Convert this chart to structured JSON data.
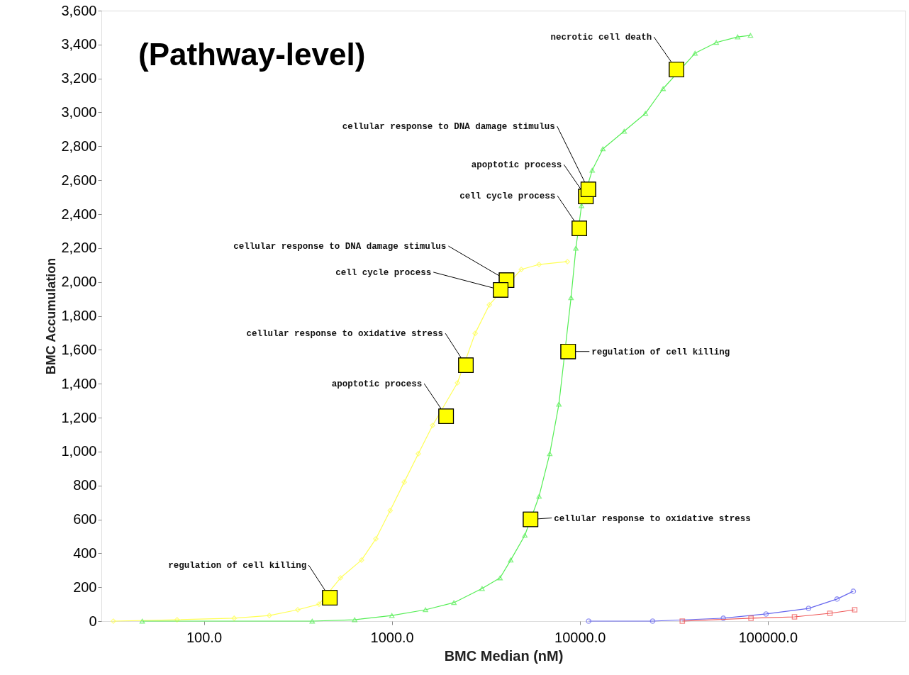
{
  "chart_data": {
    "type": "line",
    "title": "(Pathway-level)",
    "xlabel": "BMC Median (nM)",
    "ylabel": "BMC Accumulation",
    "log": "x",
    "grid": false,
    "line_style": "solid",
    "xlim": [
      28.5,
      540000
    ],
    "ylim": [
      0,
      3600
    ],
    "xticks": [
      {
        "value": 100,
        "label": "100.0"
      },
      {
        "value": 1000,
        "label": "1000.0"
      },
      {
        "value": 10000,
        "label": "10000.0"
      },
      {
        "value": 100000,
        "label": "100000.0"
      }
    ],
    "yticks": [
      0,
      200,
      400,
      600,
      800,
      {
        "value": 1000,
        "label": "1,000"
      },
      {
        "value": 1200,
        "label": "1,200"
      },
      {
        "value": 1400,
        "label": "1,400"
      },
      {
        "value": 1600,
        "label": "1,600"
      },
      {
        "value": 1800,
        "label": "1,800"
      },
      {
        "value": 2000,
        "label": "2,000"
      },
      {
        "value": 2200,
        "label": "2,200"
      },
      {
        "value": 2400,
        "label": "2,400"
      },
      {
        "value": 2600,
        "label": "2,600"
      },
      {
        "value": 2800,
        "label": "2,800"
      },
      {
        "value": 3000,
        "label": "3,000"
      },
      {
        "value": 3200,
        "label": "3,200"
      },
      {
        "value": 3400,
        "label": "3,400"
      },
      {
        "value": 3600,
        "label": "3,600"
      }
    ],
    "series": [
      {
        "marker": "diamond",
        "color": "#ffff55",
        "x": [
          33,
          72,
          145,
          223,
          316,
          410,
          533,
          690,
          822,
          980,
          1164,
          1383,
          1648,
          2233,
          2775,
          3302,
          4883,
          6070,
          8590
        ],
        "values": [
          0,
          8,
          17,
          33,
          67,
          100,
          255,
          360,
          485,
          652,
          820,
          987,
          1154,
          1405,
          1697,
          1865,
          2074,
          2103,
          2120
        ]
      },
      {
        "marker": "triangle",
        "color": "#55ee55",
        "x": [
          47,
          377,
          634,
          1000,
          1510,
          2140,
          3020,
          3765,
          4290,
          5100,
          6070,
          6920,
          7740,
          8980,
          9530,
          10210,
          11640,
          13270,
          17220,
          22340,
          27750,
          41020,
          53220,
          69100,
          80900
        ],
        "values": [
          0,
          0,
          8,
          33,
          67,
          109,
          192,
          255,
          360,
          506,
          736,
          987,
          1279,
          1907,
          2199,
          2450,
          2659,
          2785,
          2889,
          2994,
          3140,
          3349,
          3412,
          3445,
          3454
        ]
      },
      {
        "marker": "circle",
        "color": "#6666ee",
        "x": [
          11140,
          24400,
          58000,
          97900,
          164800,
          233500,
          285000
        ],
        "values": [
          0,
          0,
          17,
          42,
          75,
          130,
          176
        ]
      },
      {
        "marker": "square",
        "color": "#ee5555",
        "x": [
          35100,
          81400,
          138700,
          214000,
          290000
        ],
        "values": [
          0,
          17,
          25,
          46,
          67
        ]
      },
      {
        "type": "scatter",
        "marker": "square",
        "color": "#ffff00",
        "x": [
          468,
          1945,
          2478,
          4075,
          3795,
          5470,
          8670,
          9950,
          10770,
          11100,
          32700
        ],
        "values": [
          138,
          1208,
          1509,
          2011,
          1953,
          600,
          1590,
          2316,
          2504,
          2546,
          3253
        ]
      }
    ],
    "annotations": [
      {
        "text": "regulation of cell killing",
        "x": 468,
        "y": 138
      },
      {
        "text": "apoptotic process",
        "x": 1945,
        "y": 1208
      },
      {
        "text": "cellular response to oxidative stress",
        "x": 2478,
        "y": 1509
      },
      {
        "text": "cellular response to DNA damage stimulus",
        "x": 4075,
        "y": 2011
      },
      {
        "text": "cell cycle process",
        "x": 3795,
        "y": 1953
      },
      {
        "text": "cellular response to oxidative stress",
        "x": 5470,
        "y": 600
      },
      {
        "text": "regulation of cell killing",
        "x": 8670,
        "y": 1590
      },
      {
        "text": "cell cycle process",
        "x": 9950,
        "y": 2316
      },
      {
        "text": "apoptotic process",
        "x": 10770,
        "y": 2504
      },
      {
        "text": "cellular response to DNA damage stimulus",
        "x": 11100,
        "y": 2546
      },
      {
        "text": "necrotic cell death",
        "x": 32700,
        "y": 3253
      }
    ]
  }
}
